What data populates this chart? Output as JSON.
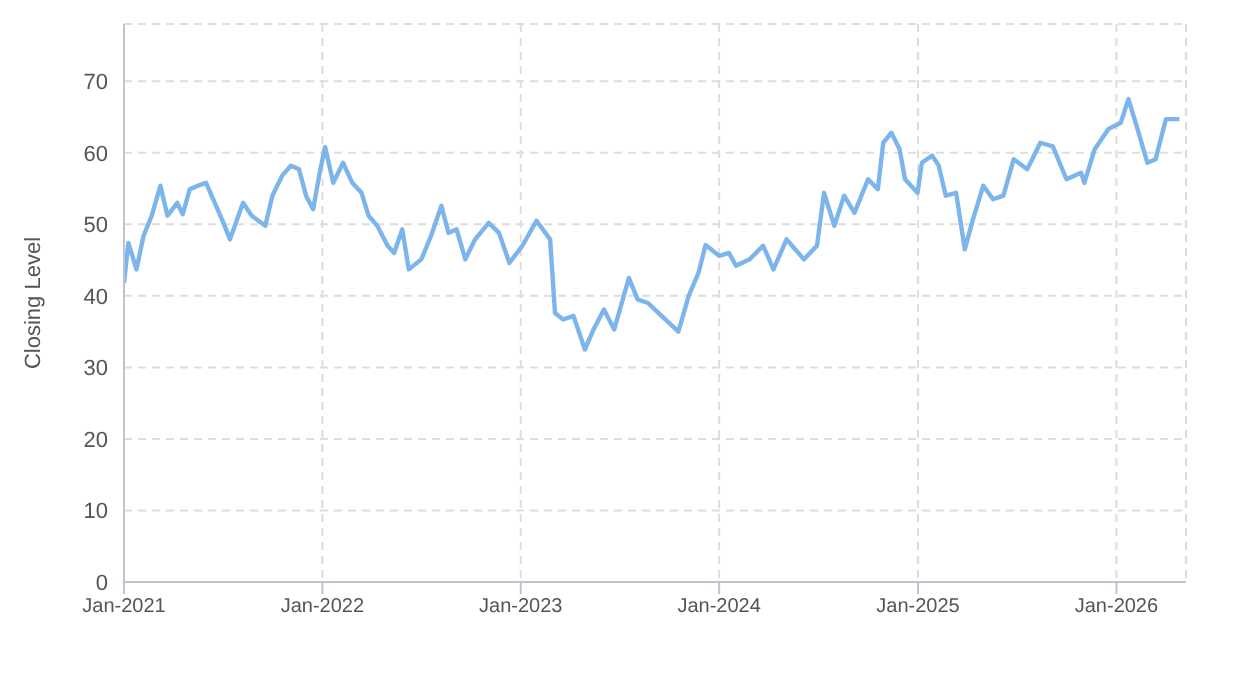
{
  "chart_data": {
    "type": "line",
    "ylabel": "Closing Level",
    "x": [
      "2021-01-01",
      "2021-01-09",
      "2021-01-24",
      "2021-02-06",
      "2021-02-21",
      "2021-03-09",
      "2021-03-22",
      "2021-04-09",
      "2021-04-19",
      "2021-05-02",
      "2021-05-17",
      "2021-06-01",
      "2021-06-17",
      "2021-07-03",
      "2021-07-15",
      "2021-07-24",
      "2021-08-08",
      "2021-08-24",
      "2021-09-18",
      "2021-10-01",
      "2021-10-19",
      "2021-11-04",
      "2021-11-19",
      "2021-12-02",
      "2021-12-15",
      "2021-12-27",
      "2022-01-06",
      "2022-01-21",
      "2022-02-08",
      "2022-02-25",
      "2022-03-14",
      "2022-03-27",
      "2022-04-12",
      "2022-05-01",
      "2022-05-13",
      "2022-05-28",
      "2022-06-09",
      "2022-07-02",
      "2022-07-20",
      "2022-08-08",
      "2022-08-21",
      "2022-09-05",
      "2022-09-21",
      "2022-10-09",
      "2022-11-03",
      "2022-11-22",
      "2022-12-11",
      "2023-01-04",
      "2023-01-30",
      "2023-02-24",
      "2023-03-05",
      "2023-03-20",
      "2023-04-08",
      "2023-04-29",
      "2023-05-15",
      "2023-06-03",
      "2023-06-22",
      "2023-07-19",
      "2023-08-04",
      "2023-08-23",
      "2023-09-17",
      "2023-10-18",
      "2023-11-06",
      "2023-11-24",
      "2023-12-07",
      "2024-01-01",
      "2024-01-19",
      "2024-02-01",
      "2024-02-26",
      "2024-03-22",
      "2024-04-10",
      "2024-05-04",
      "2024-06-05",
      "2024-06-29",
      "2024-07-12",
      "2024-07-31",
      "2024-08-18",
      "2024-09-06",
      "2024-10-01",
      "2024-10-19",
      "2024-10-29",
      "2024-11-13",
      "2024-11-28",
      "2024-12-08",
      "2024-12-31",
      "2025-01-08",
      "2025-01-27",
      "2025-02-08",
      "2025-02-21",
      "2025-03-12",
      "2025-03-28",
      "2025-04-12",
      "2025-05-01",
      "2025-05-19",
      "2025-06-07",
      "2025-06-26",
      "2025-07-21",
      "2025-08-14",
      "2025-09-06",
      "2025-10-01",
      "2025-10-28",
      "2025-11-03",
      "2025-11-22",
      "2025-12-17",
      "2026-01-09",
      "2026-01-23",
      "2026-02-07",
      "2026-02-27",
      "2026-03-14",
      "2026-04-02",
      "2026-04-27"
    ],
    "series": [
      {
        "color": "#7cb5ec",
        "values": [
          41.8,
          47.4,
          43.7,
          48.4,
          51.2,
          55.4,
          51.2,
          53.0,
          51.4,
          54.9,
          55.4,
          55.8,
          53.0,
          50.2,
          47.9,
          49.8,
          53.0,
          51.2,
          49.8,
          54.0,
          56.8,
          58.2,
          57.7,
          54.0,
          52.1,
          57.2,
          60.8,
          55.8,
          58.6,
          55.8,
          54.4,
          51.2,
          49.8,
          47.0,
          46.0,
          49.3,
          43.7,
          45.1,
          48.4,
          52.6,
          48.8,
          49.3,
          45.1,
          47.9,
          50.2,
          48.8,
          44.6,
          47.0,
          50.5,
          47.9,
          37.6,
          36.7,
          37.2,
          32.5,
          35.3,
          38.1,
          35.3,
          42.5,
          39.5,
          39.0,
          37.2,
          35.0,
          40.0,
          43.2,
          47.1,
          45.6,
          46.0,
          44.2,
          45.1,
          47.0,
          43.7,
          47.9,
          45.1,
          47.0,
          54.4,
          49.8,
          54.0,
          51.6,
          56.3,
          54.9,
          61.4,
          62.8,
          60.5,
          56.3,
          54.4,
          58.6,
          59.6,
          58.2,
          54.0,
          54.4,
          46.5,
          50.7,
          55.4,
          53.5,
          54.0,
          59.1,
          57.7,
          61.4,
          60.9,
          56.3,
          57.2,
          55.8,
          60.5,
          63.3,
          64.2,
          67.5,
          63.8,
          58.6,
          59.1,
          64.7,
          64.7
        ]
      }
    ],
    "xlim": [
      "2021-01-01",
      "2026-05-09"
    ],
    "xticks": [
      {
        "value": "2021-01-01",
        "label": "Jan-2021"
      },
      {
        "value": "2022-01-01",
        "label": "Jan-2022"
      },
      {
        "value": "2023-01-01",
        "label": "Jan-2023"
      },
      {
        "value": "2024-01-01",
        "label": "Jan-2024"
      },
      {
        "value": "2025-01-01",
        "label": "Jan-2025"
      },
      {
        "value": "2026-01-01",
        "label": "Jan-2026"
      }
    ],
    "ylim": [
      0,
      78
    ],
    "yticks": [
      0,
      10,
      20,
      30,
      40,
      50,
      60,
      70
    ],
    "grid": true,
    "marker": "none",
    "line_style": "solid",
    "legend": false
  }
}
